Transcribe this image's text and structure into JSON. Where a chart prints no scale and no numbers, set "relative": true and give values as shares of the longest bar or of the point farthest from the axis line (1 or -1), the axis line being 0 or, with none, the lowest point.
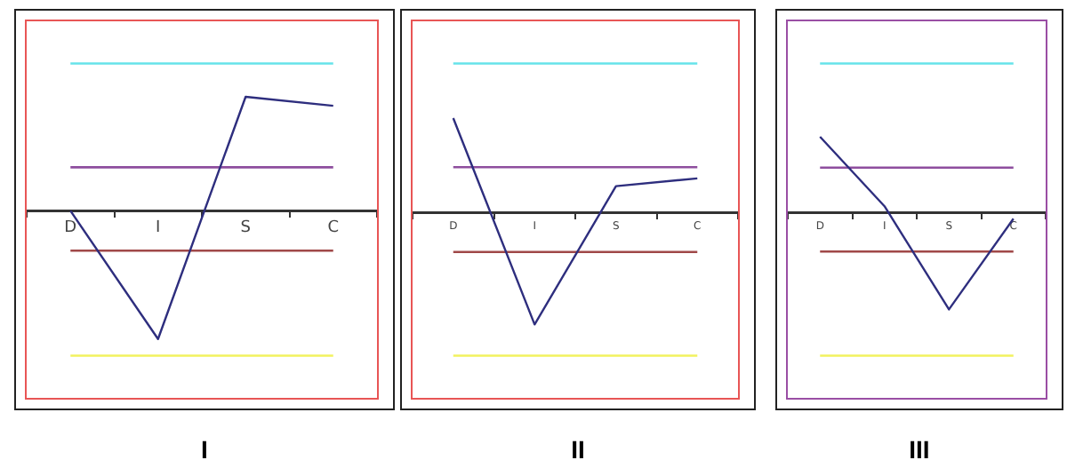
{
  "chart_data": [
    {
      "type": "line",
      "title": "I",
      "categories": [
        "D",
        "I",
        "S",
        "C"
      ],
      "relative": true,
      "series": [
        {
          "color": "#2e2e7e",
          "values": [
            0,
            -1,
            0.89,
            0.82
          ]
        }
      ],
      "ref_lines": [
        {
          "axis": "y",
          "value": 1.15,
          "color": "#66e3ea"
        },
        {
          "axis": "y",
          "value": 0.34,
          "color": "#8e4e9e"
        },
        {
          "axis": "y",
          "value": -0.31,
          "color": "#a04848"
        },
        {
          "axis": "y",
          "value": -1.13,
          "color": "#f2f25e"
        }
      ]
    },
    {
      "type": "line",
      "title": "II",
      "categories": [
        "D",
        "I",
        "S",
        "C"
      ],
      "relative": true,
      "series": [
        {
          "color": "#2e2e7e",
          "values": [
            0.85,
            -1,
            0.24,
            0.31
          ]
        }
      ],
      "ref_lines": [
        {
          "axis": "y",
          "value": 1.34,
          "color": "#66e3ea"
        },
        {
          "axis": "y",
          "value": 0.41,
          "color": "#8e4e9e"
        },
        {
          "axis": "y",
          "value": -0.35,
          "color": "#a04848"
        },
        {
          "axis": "y",
          "value": -1.28,
          "color": "#f2f25e"
        }
      ]
    },
    {
      "type": "line",
      "title": "III",
      "categories": [
        "D",
        "I",
        "S",
        "C"
      ],
      "relative": true,
      "series": [
        {
          "color": "#2e2e7e",
          "values": [
            0.79,
            0.07,
            -1,
            -0.06
          ]
        }
      ],
      "ref_lines": [
        {
          "axis": "y",
          "value": 1.55,
          "color": "#66e3ea"
        },
        {
          "axis": "y",
          "value": 0.47,
          "color": "#8e4e9e"
        },
        {
          "axis": "y",
          "value": -0.4,
          "color": "#a04848"
        },
        {
          "axis": "y",
          "value": -1.48,
          "color": "#f2f25e"
        }
      ]
    }
  ]
}
